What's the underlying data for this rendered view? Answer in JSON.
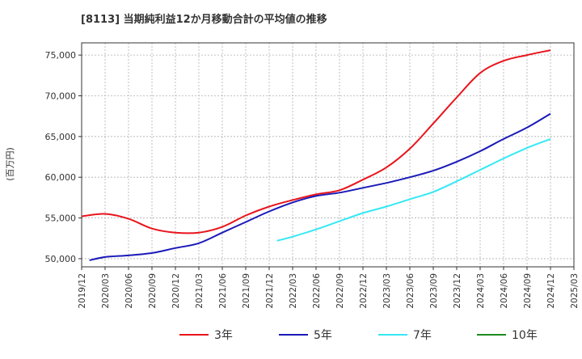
{
  "chart_data": {
    "type": "line",
    "title": "[8113]  当期純利益12か月移動合計の平均値の推移",
    "ylabel": "(百万円)",
    "xlabel": "",
    "ylim": [
      49000,
      76500
    ],
    "yticks": [
      50000,
      55000,
      60000,
      65000,
      70000,
      75000
    ],
    "ytick_labels": [
      "50,000",
      "55,000",
      "60,000",
      "65,000",
      "70,000",
      "75,000"
    ],
    "xticks": [
      "2019/12",
      "2020/03",
      "2020/06",
      "2020/09",
      "2020/12",
      "2021/03",
      "2021/06",
      "2021/09",
      "2021/12",
      "2022/03",
      "2022/06",
      "2022/09",
      "2022/12",
      "2023/03",
      "2023/06",
      "2023/09",
      "2023/12",
      "2024/03",
      "2024/06",
      "2024/09",
      "2024/12",
      "2025/03"
    ],
    "grid": true,
    "legend_position": "bottom",
    "series": [
      {
        "name": "3年",
        "color": "#e8141c",
        "x": [
          "2019/12",
          "2020/03",
          "2020/06",
          "2020/09",
          "2020/12",
          "2021/03",
          "2021/06",
          "2021/09",
          "2021/12",
          "2022/03",
          "2022/06",
          "2022/09",
          "2022/12",
          "2023/03",
          "2023/06",
          "2023/09",
          "2023/12",
          "2024/03",
          "2024/06",
          "2024/09",
          "2024/12"
        ],
        "values": [
          55200,
          55500,
          54900,
          53700,
          53200,
          53200,
          53900,
          55300,
          56400,
          57200,
          57900,
          58400,
          59700,
          61200,
          63500,
          66600,
          69800,
          72800,
          74300,
          75000,
          75600
        ]
      },
      {
        "name": "5年",
        "color": "#1a1ab8",
        "x": [
          "2020/01",
          "2020/03",
          "2020/06",
          "2020/09",
          "2020/12",
          "2021/03",
          "2021/06",
          "2021/09",
          "2021/12",
          "2022/03",
          "2022/06",
          "2022/09",
          "2022/12",
          "2023/03",
          "2023/06",
          "2023/09",
          "2023/12",
          "2024/03",
          "2024/06",
          "2024/09",
          "2024/12"
        ],
        "values": [
          49800,
          50200,
          50400,
          50700,
          51300,
          51900,
          53200,
          54500,
          55800,
          56900,
          57700,
          58100,
          58700,
          59300,
          60000,
          60800,
          61900,
          63200,
          64700,
          66100,
          67800
        ]
      },
      {
        "name": "7年",
        "color": "#36e8f5",
        "x": [
          "2022/01",
          "2022/03",
          "2022/06",
          "2022/09",
          "2022/12",
          "2023/03",
          "2023/06",
          "2023/09",
          "2023/12",
          "2024/03",
          "2024/06",
          "2024/09",
          "2024/12"
        ],
        "values": [
          52200,
          52700,
          53600,
          54600,
          55600,
          56400,
          57300,
          58200,
          59500,
          60900,
          62300,
          63600,
          64700
        ]
      },
      {
        "name": "10年",
        "color": "#1e8a1e",
        "x": [],
        "values": []
      }
    ]
  }
}
